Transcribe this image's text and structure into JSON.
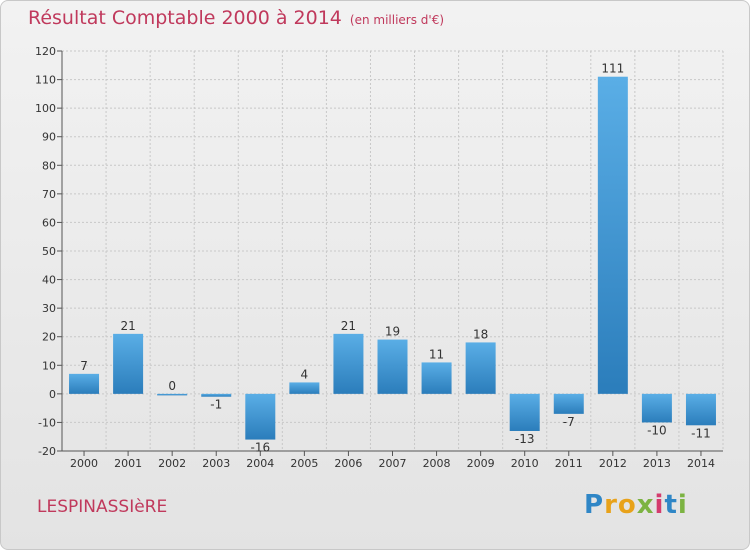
{
  "chart_data": {
    "type": "bar",
    "title": "Résultat Comptable 2000 à 2014",
    "subtitle": "(en milliers d'€)",
    "categories": [
      "2000",
      "2001",
      "2002",
      "2003",
      "2004",
      "2005",
      "2006",
      "2007",
      "2008",
      "2009",
      "2010",
      "2011",
      "2012",
      "2013",
      "2014"
    ],
    "values": [
      7,
      21,
      0,
      -1,
      -16,
      4,
      21,
      19,
      11,
      18,
      -13,
      -7,
      111,
      -10,
      -11
    ],
    "value_labels": [
      "7",
      "21",
      "0",
      "-1",
      "-16",
      "4",
      "21",
      "19",
      "11",
      "18",
      "-13",
      "-7",
      "111",
      "-10",
      "-11"
    ],
    "ylim": [
      -20,
      120
    ],
    "yticks": [
      -20,
      -10,
      0,
      10,
      20,
      30,
      40,
      50,
      60,
      70,
      80,
      90,
      100,
      110,
      120
    ],
    "ytick_labels": [
      "-20",
      "-10",
      "0",
      "10",
      "20",
      "30",
      "40",
      "50",
      "60",
      "70",
      "80",
      "90",
      "100",
      "110",
      "120"
    ],
    "xlabel": "",
    "ylabel": "",
    "grid": true
  },
  "commune": "LESPINASSIèRE",
  "logo": {
    "text": "Proxiti",
    "letters": [
      "P",
      "r",
      "o",
      "x",
      "i",
      "t",
      "i"
    ]
  },
  "colors": {
    "title": "#c0395c",
    "bar_light": "#5aaee6",
    "bar_dark": "#2b7dbb",
    "grid": "#c8c8c8",
    "axis": "#555555"
  }
}
